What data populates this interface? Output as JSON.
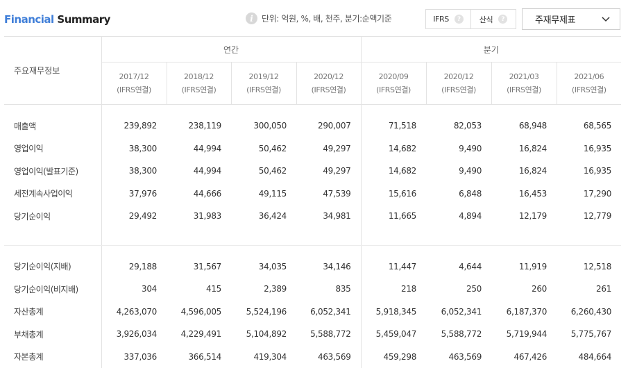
{
  "header": {
    "title_part1": "Financial",
    "title_part2": " Summary",
    "unit_text": "단위: 억원, %, 배, 천주, 분기:순액기준",
    "toggle": {
      "option1": "IFRS",
      "option2": "산식",
      "help": "?"
    },
    "select_value": "주재무제표"
  },
  "table": {
    "label_header": "주요재무정보",
    "group_annual": "연간",
    "group_quarter": "분기",
    "periods": [
      {
        "date": "2017/12",
        "basis": "(IFRS연결)"
      },
      {
        "date": "2018/12",
        "basis": "(IFRS연결)"
      },
      {
        "date": "2019/12",
        "basis": "(IFRS연결)"
      },
      {
        "date": "2020/12",
        "basis": "(IFRS연결)"
      },
      {
        "date": "2020/09",
        "basis": "(IFRS연결)"
      },
      {
        "date": "2020/12",
        "basis": "(IFRS연결)"
      },
      {
        "date": "2021/03",
        "basis": "(IFRS연결)"
      },
      {
        "date": "2021/06",
        "basis": "(IFRS연결)"
      }
    ],
    "rows": [
      {
        "label": "매출액",
        "values": [
          "239,892",
          "238,119",
          "300,050",
          "290,007",
          "71,518",
          "82,053",
          "68,948",
          "68,565"
        ]
      },
      {
        "label": "영업이익",
        "values": [
          "38,300",
          "44,994",
          "50,462",
          "49,297",
          "14,682",
          "9,490",
          "16,824",
          "16,935"
        ]
      },
      {
        "label": "영업이익(발표기준)",
        "values": [
          "38,300",
          "44,994",
          "50,462",
          "49,297",
          "14,682",
          "9,490",
          "16,824",
          "16,935"
        ]
      },
      {
        "label": "세전계속사업이익",
        "values": [
          "37,976",
          "44,666",
          "49,115",
          "47,539",
          "15,616",
          "6,848",
          "16,453",
          "17,290"
        ]
      },
      {
        "label": "당기순이익",
        "values": [
          "29,492",
          "31,983",
          "36,424",
          "34,981",
          "11,665",
          "4,894",
          "12,179",
          "12,779"
        ]
      },
      {
        "label": "당기순이익(지배)",
        "values": [
          "29,188",
          "31,567",
          "34,035",
          "34,146",
          "11,447",
          "4,644",
          "11,919",
          "12,518"
        ]
      },
      {
        "label": "당기순이익(비지배)",
        "values": [
          "304",
          "415",
          "2,389",
          "835",
          "218",
          "250",
          "260",
          "261"
        ]
      },
      {
        "label": "자산총계",
        "values": [
          "4,263,070",
          "4,596,005",
          "5,524,196",
          "6,052,341",
          "5,918,345",
          "6,052,341",
          "6,187,370",
          "6,260,430"
        ]
      },
      {
        "label": "부채총계",
        "values": [
          "3,926,034",
          "4,229,491",
          "5,104,892",
          "5,588,772",
          "5,459,047",
          "5,588,772",
          "5,719,944",
          "5,775,767"
        ]
      },
      {
        "label": "자본총계",
        "values": [
          "337,036",
          "366,514",
          "419,304",
          "463,569",
          "459,298",
          "463,569",
          "467,426",
          "484,664"
        ]
      }
    ]
  }
}
